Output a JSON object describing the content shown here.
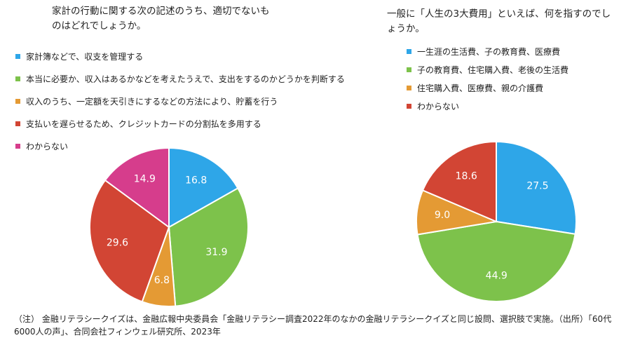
{
  "charts": {
    "left": {
      "title": "家計の行動に関する次の記述のうち、適切でないものはどれでしょうか。",
      "legend_labels": [
        "家計簿などで、収支を管理する",
        "本当に必要か、収入はあるかなどを考えたうえで、支出をするのかどうかを判断する",
        "収入のうち、一定額を天引きにするなどの方法により、貯蓄を行う",
        "支払いを遅らせるため、クレジットカードの分割払を多用する",
        "わからない"
      ],
      "value_labels": [
        "16.8",
        "31.9",
        "6.8",
        "29.6",
        "14.9"
      ]
    },
    "right": {
      "title": "一般に「人生の3大費用」といえば、何を指すのでしょうか。",
      "legend_labels": [
        "一生涯の生活費、子の教育費、医療費",
        "子の教育費、住宅購入費、老後の生活費",
        "住宅購入費、医療費、親の介護費",
        "わからない"
      ],
      "value_labels": [
        "27.5",
        "44.9",
        "9.0",
        "18.6"
      ]
    }
  },
  "note": "（注） 金融リテラシークイズは、金融広報中央委員会「金融リテラシー調査2022年のなかの金融リテラシークイズと同じ設問、選択肢で実施。（出所）「60代6000人の声」、合同会社フィンウェル研究所、2023年",
  "chart_data": [
    {
      "type": "pie",
      "title": "家計の行動に関する次の記述のうち、適切でないものはどれでしょうか。",
      "categories": [
        "家計簿などで、収支を管理する",
        "本当に必要か、収入はあるかなどを考えたうえで、支出をするのかどうかを判断する",
        "収入のうち、一定額を天引きにするなどの方法により、貯蓄を行う",
        "支払いを遅らせるため、クレジットカードの分割払を多用する",
        "わからない"
      ],
      "values": [
        16.8,
        31.9,
        6.8,
        29.6,
        14.9
      ],
      "colors": [
        "#2EA6E8",
        "#7DC24B",
        "#E49A34",
        "#D24534",
        "#D63D8C"
      ],
      "start": "12 o'clock, clockwise",
      "legend": "top-left"
    },
    {
      "type": "pie",
      "title": "一般に「人生の3大費用」といえば、何を指すのでしょうか。",
      "categories": [
        "一生涯の生活費、子の教育費、医療費",
        "子の教育費、住宅購入費、老後の生活費",
        "住宅購入費、医療費、親の介護費",
        "わからない"
      ],
      "values": [
        27.5,
        44.9,
        9.0,
        18.6
      ],
      "colors": [
        "#2EA6E8",
        "#7DC24B",
        "#E49A34",
        "#D24534"
      ],
      "start": "12 o'clock, clockwise",
      "legend": "top"
    }
  ]
}
